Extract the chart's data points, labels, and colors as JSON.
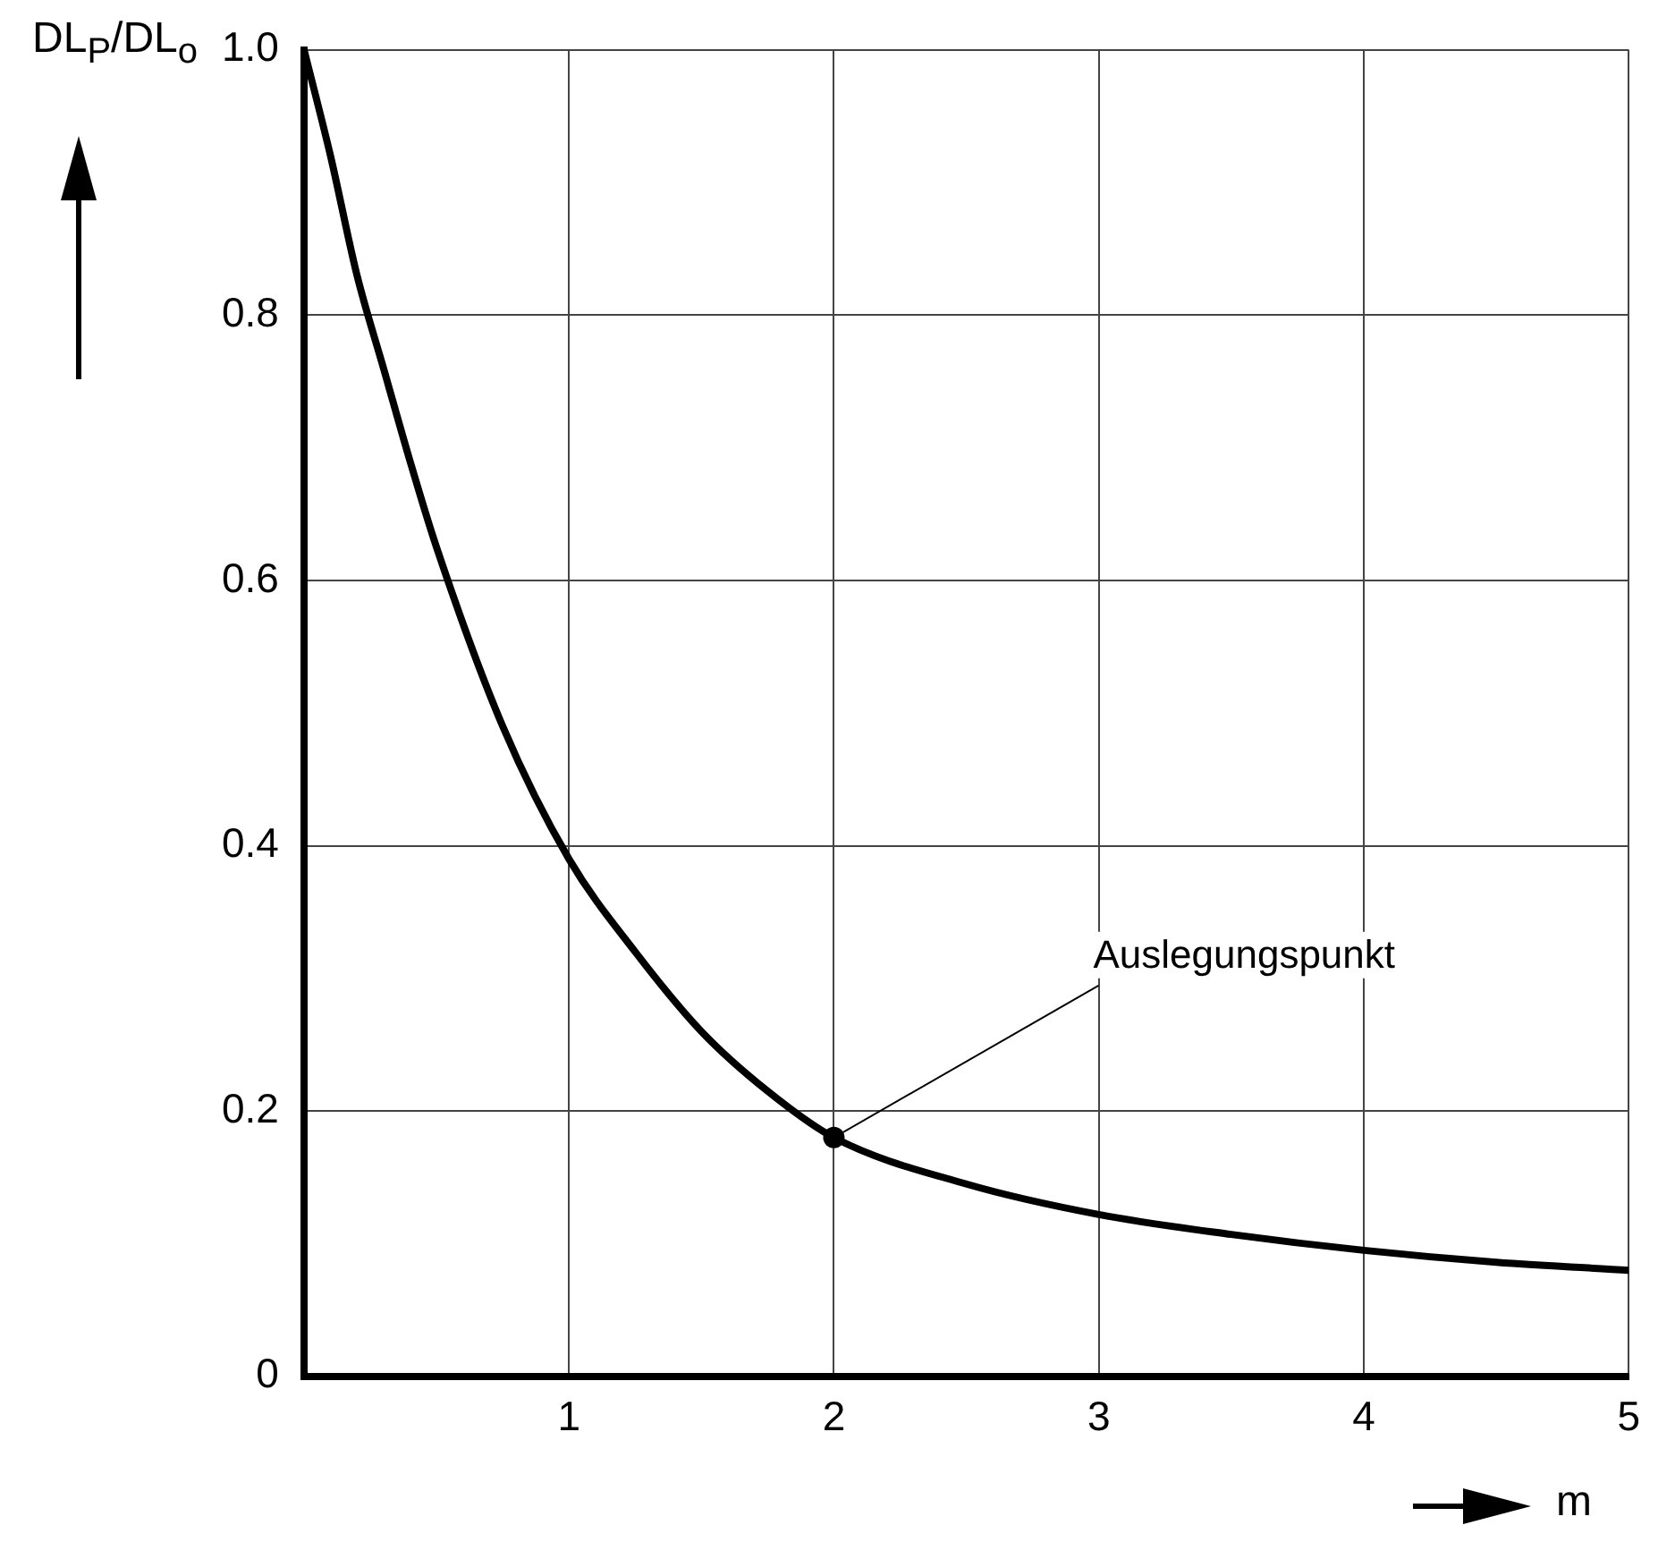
{
  "chart_data": {
    "type": "line",
    "xlabel": "m",
    "ylabel": "DL$_{P}$/DL$_{o}$",
    "x": [
      0,
      0.1,
      0.2,
      0.3,
      0.4,
      0.5,
      0.75,
      1,
      1.25,
      1.5,
      1.75,
      2,
      2.5,
      3,
      3.5,
      4,
      4.5,
      5
    ],
    "series": [
      {
        "color": "#000000",
        "values": [
          1.0,
          0.92,
          0.83,
          0.76,
          0.69,
          0.625,
          0.49,
          0.39,
          0.32,
          0.26,
          0.215,
          0.18,
          0.145,
          0.122,
          0.107,
          0.095,
          0.086,
          0.08
        ]
      }
    ],
    "xlim": [
      0,
      5
    ],
    "ylim": [
      0,
      1
    ],
    "xticks": [
      {
        "value": 0,
        "label": null
      },
      1,
      2,
      3,
      4,
      5
    ],
    "yticks": [
      0,
      0.2,
      0.4,
      0.6,
      0.8,
      {
        "value": 1,
        "label": "1.0"
      }
    ],
    "annotations": [
      {
        "text": "Auslegungspunkt",
        "x": 2,
        "y": 0.18
      }
    ],
    "grid": true,
    "legend": false,
    "marker": "none",
    "line_style": "solid"
  }
}
